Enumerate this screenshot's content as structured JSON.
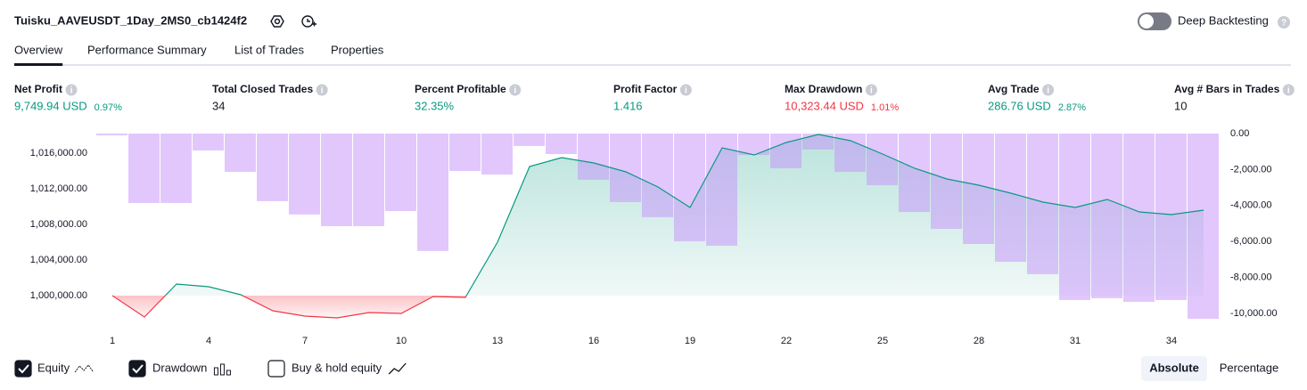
{
  "header": {
    "title": "Tuisku_AAVEUSDT_1Day_2MS0_cb1424f2",
    "toggle_label": "Deep Backtesting"
  },
  "tabs": [
    "Overview",
    "Performance Summary",
    "List of Trades",
    "Properties"
  ],
  "metrics": [
    {
      "label": "Net Profit",
      "value": "9,749.94 USD",
      "pct": "0.97%",
      "color": "#089981"
    },
    {
      "label": "Total Closed Trades",
      "value": "34",
      "color": "#131722"
    },
    {
      "label": "Percent Profitable",
      "value": "32.35%",
      "color": "#089981"
    },
    {
      "label": "Profit Factor",
      "value": "1.416",
      "color": "#089981"
    },
    {
      "label": "Max Drawdown",
      "value": "10,323.44 USD",
      "pct": "1.01%",
      "color": "#f23645"
    },
    {
      "label": "Avg Trade",
      "value": "286.76 USD",
      "pct": "2.87%",
      "color": "#089981"
    },
    {
      "label": "Avg # Bars in Trades",
      "value": "10",
      "color": "#131722"
    }
  ],
  "chart_data": {
    "type": "line",
    "x": [
      1,
      2,
      3,
      4,
      5,
      6,
      7,
      8,
      9,
      10,
      11,
      12,
      13,
      14,
      15,
      16,
      17,
      18,
      19,
      20,
      21,
      22,
      23,
      24,
      25,
      26,
      27,
      28,
      29,
      30,
      31,
      32,
      33,
      34,
      35
    ],
    "series": [
      {
        "name": "Equity",
        "color": "#089981",
        "negative_color": "#f23645",
        "values": [
          1000000,
          997600,
          1001300,
          1001000,
          1000100,
          998300,
          997700,
          997500,
          998100,
          998000,
          999900,
          999800,
          1006000,
          1014500,
          1015500,
          1014900,
          1013900,
          1012200,
          1009900,
          1016600,
          1015800,
          1017200,
          1018100,
          1017400,
          1015900,
          1014300,
          1013100,
          1012400,
          1011500,
          1010500,
          1009900,
          1010800,
          1009400,
          1009100,
          1009600
        ]
      },
      {
        "name": "Drawdown",
        "color": "#c68ffb",
        "axis": "y2",
        "values": [
          -100,
          -3860,
          -3860,
          -940,
          -2130,
          -3760,
          -4500,
          -5150,
          -5150,
          -4310,
          -6530,
          -2080,
          -2280,
          -690,
          -1140,
          -2570,
          -3810,
          -4650,
          -5990,
          -6240,
          -1190,
          -1930,
          -890,
          -2130,
          -2870,
          -4360,
          -5300,
          -6140,
          -7130,
          -7820,
          -9260,
          -9160,
          -9360,
          -9260,
          -10300
        ]
      }
    ],
    "legend_extra": "Buy & hold equity",
    "modes": [
      "Absolute",
      "Percentage"
    ],
    "xlim": [
      0.5,
      35.5
    ],
    "xticks": [
      1,
      4,
      7,
      10,
      13,
      16,
      19,
      22,
      25,
      28,
      31,
      34
    ],
    "ylim": [
      997200,
      1018200
    ],
    "yticks": [
      {
        "value": 1000000,
        "label": "1,000,000.00"
      },
      {
        "value": 1004000,
        "label": "1,004,000.00"
      },
      {
        "value": 1008000,
        "label": "1,008,000.00"
      },
      {
        "value": 1012000,
        "label": "1,012,000.00"
      },
      {
        "value": 1016000,
        "label": "1,016,000.00"
      }
    ],
    "y2lim": [
      -10400,
      0
    ],
    "y2ticks": [
      {
        "value": 0,
        "label": "0.00"
      },
      {
        "value": -2000,
        "label": "-2,000.00"
      },
      {
        "value": -4000,
        "label": "-4,000.00"
      },
      {
        "value": -6000,
        "label": "-6,000.00"
      },
      {
        "value": -8000,
        "label": "-8,000.00"
      },
      {
        "value": -10000,
        "label": "-10,000.00"
      }
    ]
  }
}
